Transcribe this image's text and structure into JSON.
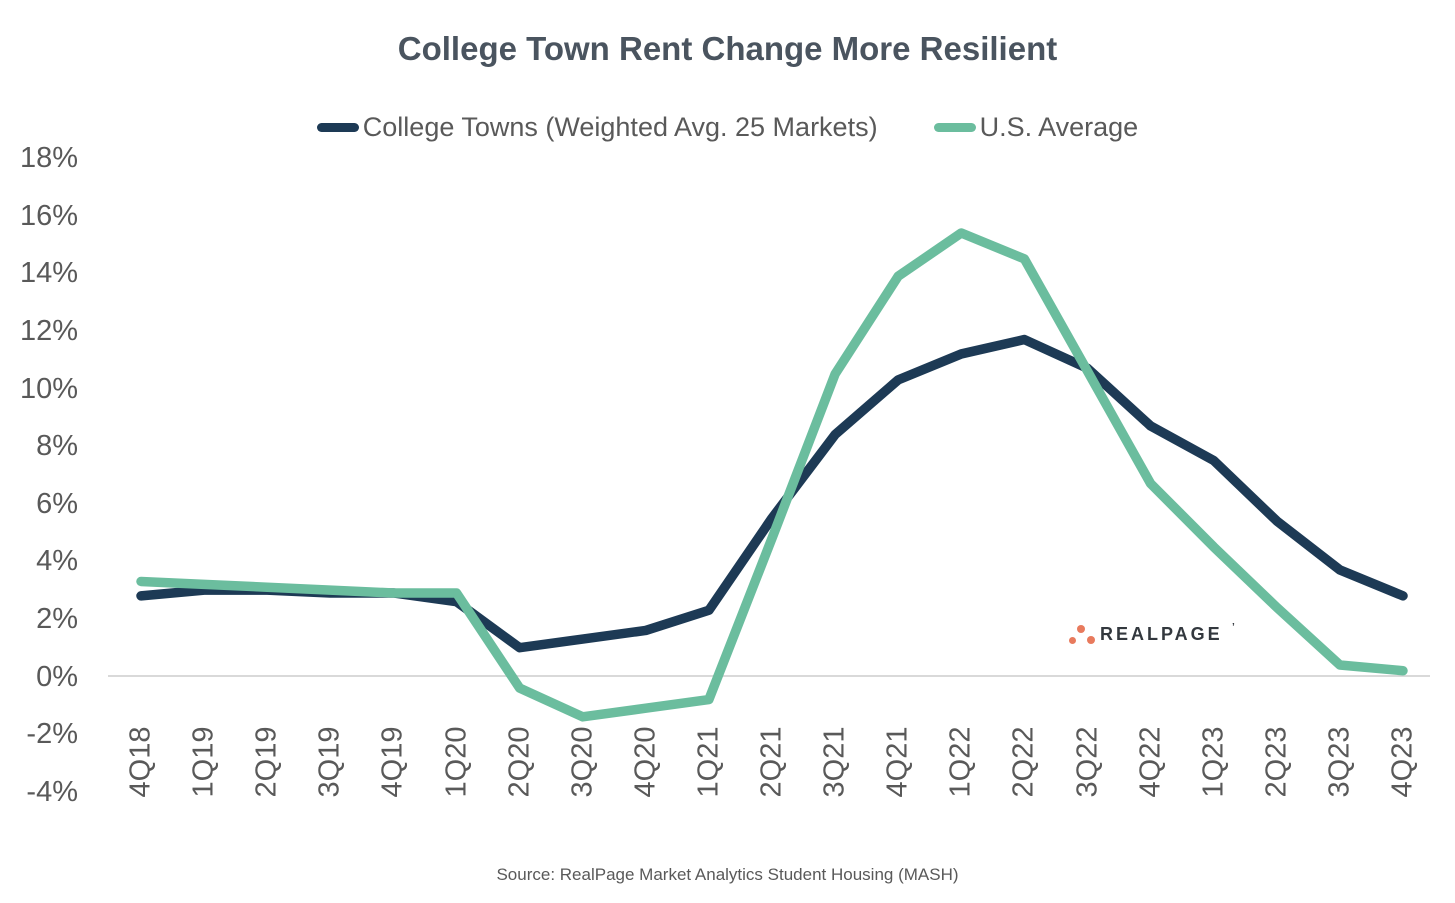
{
  "title": "College Town Rent Change More Resilient",
  "legend": [
    {
      "label": "College Towns (Weighted Avg. 25 Markets)",
      "color": "#1d3a55"
    },
    {
      "label": "U.S. Average",
      "color": "#6bbd9e"
    }
  ],
  "source": "Source: RealPage Market Analytics Student Housing (MASH)",
  "logo": {
    "text": "REALPAGE",
    "mark": "’",
    "dot_color": "#e87a5d",
    "text_color": "#33383e"
  },
  "colors": {
    "title_text": "#4a545f",
    "axis_text": "#595959",
    "zero_gridline": "#d9d9d9",
    "background": "#ffffff",
    "college_towns_line": "#1d3a55",
    "us_average_line": "#6bbd9e"
  },
  "chart_data": {
    "type": "line",
    "title": "College Town Rent Change More Resilient",
    "xlabel": "",
    "ylabel": "",
    "categories": [
      "4Q18",
      "1Q19",
      "2Q19",
      "3Q19",
      "4Q19",
      "1Q20",
      "2Q20",
      "3Q20",
      "4Q20",
      "1Q21",
      "2Q21",
      "3Q21",
      "4Q21",
      "1Q22",
      "2Q22",
      "3Q22",
      "4Q22",
      "1Q23",
      "2Q23",
      "3Q23",
      "4Q23"
    ],
    "series": [
      {
        "name": "College Towns (Weighted Avg. 25 Markets)",
        "color": "#1d3a55",
        "values": [
          2.8,
          3.0,
          3.0,
          2.9,
          2.9,
          2.6,
          1.0,
          1.3,
          1.6,
          2.3,
          5.5,
          8.4,
          10.3,
          11.2,
          11.7,
          10.7,
          8.7,
          7.5,
          5.4,
          3.7,
          2.8
        ]
      },
      {
        "name": "U.S. Average",
        "color": "#6bbd9e",
        "values": [
          3.3,
          3.2,
          3.1,
          3.0,
          2.9,
          2.9,
          -0.4,
          -1.4,
          -1.1,
          -0.8,
          4.8,
          10.5,
          13.9,
          15.4,
          14.5,
          10.6,
          6.7,
          4.5,
          2.4,
          0.4,
          0.2
        ]
      }
    ],
    "y_ticks": [
      "18%",
      "16%",
      "14%",
      "12%",
      "10%",
      "8%",
      "6%",
      "4%",
      "2%",
      "0%",
      "-2%",
      "-4%"
    ],
    "y_tick_values": [
      18,
      16,
      14,
      12,
      10,
      8,
      6,
      4,
      2,
      0,
      -2,
      -4
    ],
    "ylim": [
      -4,
      18
    ],
    "grid": "zero-baseline-only",
    "legend_position": "top"
  }
}
